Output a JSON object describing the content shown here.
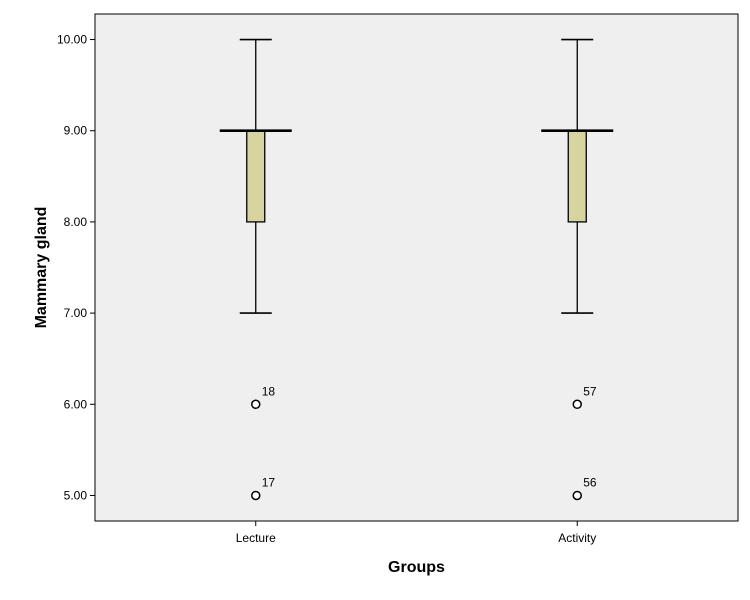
{
  "chart_data": {
    "type": "boxplot",
    "xlabel": "Groups",
    "ylabel": "Mammary gland",
    "ylim": [
      4.72,
      10.28
    ],
    "yticks": [
      5,
      6,
      7,
      8,
      9,
      10
    ],
    "ytick_labels": [
      "5.00",
      "6.00",
      "7.00",
      "8.00",
      "9.00",
      "10.00"
    ],
    "grid": false,
    "colors": {
      "plot_background": "#efefef",
      "box_fill": "#d8d4a0",
      "stroke": "#000000"
    },
    "categories": [
      "Lecture",
      "Activity"
    ],
    "boxes": [
      {
        "category": "Lecture",
        "min": 7,
        "q1": 8,
        "median": 9,
        "q3": 9,
        "max": 10,
        "outliers": [
          {
            "value": 6,
            "label": "18"
          },
          {
            "value": 5,
            "label": "17"
          }
        ]
      },
      {
        "category": "Activity",
        "min": 7,
        "q1": 8,
        "median": 9,
        "q3": 9,
        "max": 10,
        "outliers": [
          {
            "value": 6,
            "label": "57"
          },
          {
            "value": 5,
            "label": "56"
          }
        ]
      }
    ]
  }
}
